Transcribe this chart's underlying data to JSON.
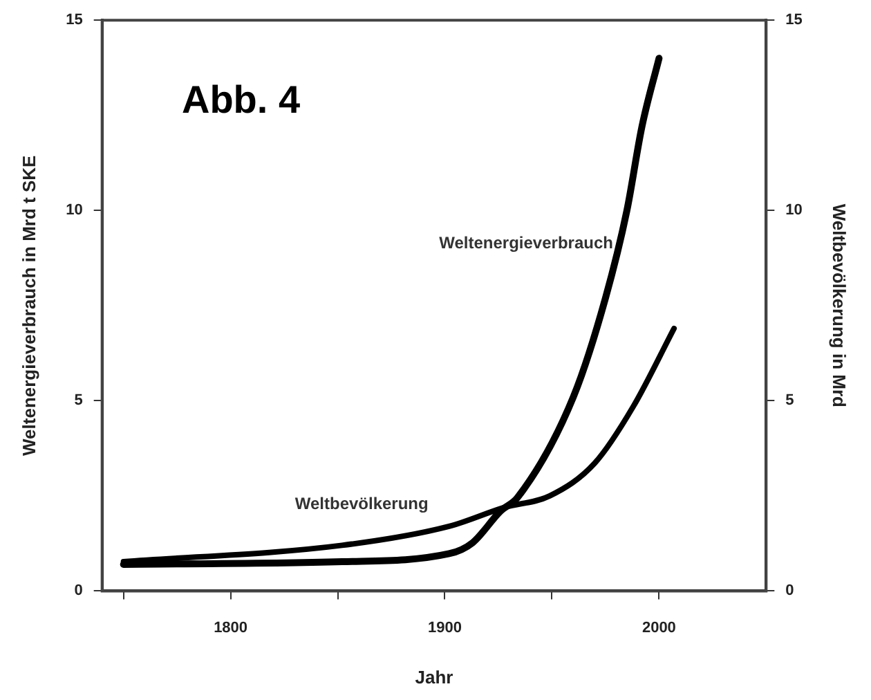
{
  "chart_data": {
    "type": "line",
    "xlabel": "Jahr",
    "ylabel": "Weltenergieverbrauch in Mrd t SKE",
    "y2label": "Weltbevölkerung in Mrd",
    "annotations": [
      "Abb. 4"
    ],
    "xlim": [
      1740,
      2050
    ],
    "xticks": [
      {
        "value": 1750,
        "label": null
      },
      1800,
      {
        "value": 1850,
        "label": null
      },
      1900,
      {
        "value": 1950,
        "label": null
      },
      2000
    ],
    "ylim": [
      0,
      15
    ],
    "yticks": [
      0,
      5,
      10,
      15
    ],
    "y2lim": [
      0,
      15
    ],
    "y2ticks": [
      0,
      5,
      10,
      15
    ],
    "grid": false,
    "legend": false,
    "marker": "none",
    "line_style": "solid",
    "series": [
      {
        "name": "Weltenergieverbrauch",
        "color": "#000000",
        "x": [
          1750,
          1852,
          1902,
          1913,
          1926,
          1934,
          1960,
          1975,
          1985,
          1992,
          2000
        ],
        "values": [
          0.7,
          0.77,
          0.98,
          1.27,
          2.1,
          2.46,
          5.1,
          7.7,
          10.0,
          12.2,
          14.0
        ]
      },
      {
        "name": "Weltbevölkerung",
        "color": "#000000",
        "axis": "y2",
        "x": [
          1750,
          1852,
          1902,
          1928,
          1949,
          1970,
          1988,
          2007
        ],
        "values": [
          0.77,
          1.2,
          1.7,
          2.2,
          2.5,
          3.36,
          4.85,
          6.9
        ]
      }
    ]
  }
}
